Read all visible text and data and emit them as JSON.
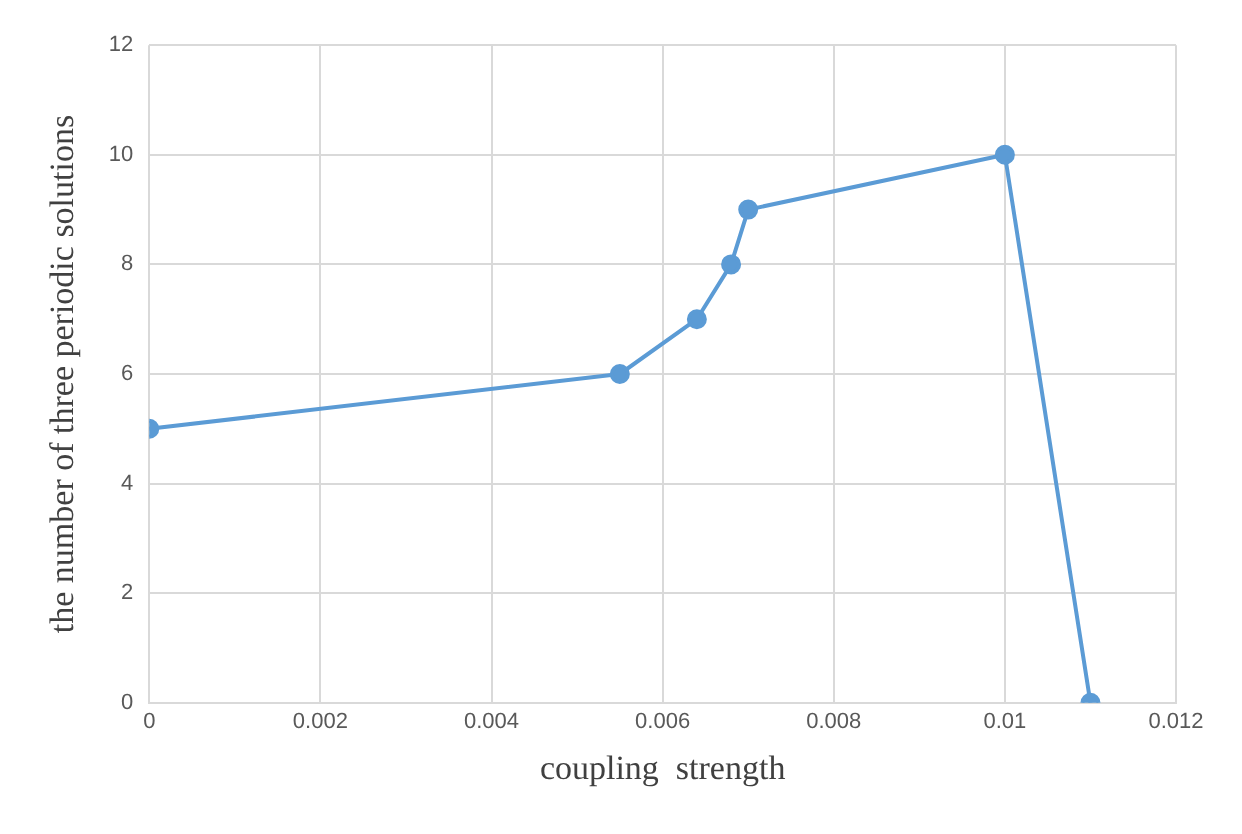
{
  "chart_data": {
    "type": "line",
    "xlabel": "coupling  strength",
    "ylabel": "the number of three periodic solutions",
    "x": [
      0,
      0.0055,
      0.0064,
      0.0068,
      0.007,
      0.01,
      0.011
    ],
    "series": [
      {
        "color": "#5b9bd5",
        "values": [
          5,
          6,
          7,
          8,
          9,
          10,
          0
        ]
      }
    ],
    "xlim": [
      0,
      0.012
    ],
    "xticks": [
      0,
      0.002,
      0.004,
      0.006,
      0.008,
      0.01,
      0.012
    ],
    "ylim": [
      0,
      12
    ],
    "yticks": [
      0,
      2,
      4,
      6,
      8,
      10,
      12
    ],
    "grid": true,
    "legend": false,
    "marker": "circle",
    "line_style": "solid"
  }
}
